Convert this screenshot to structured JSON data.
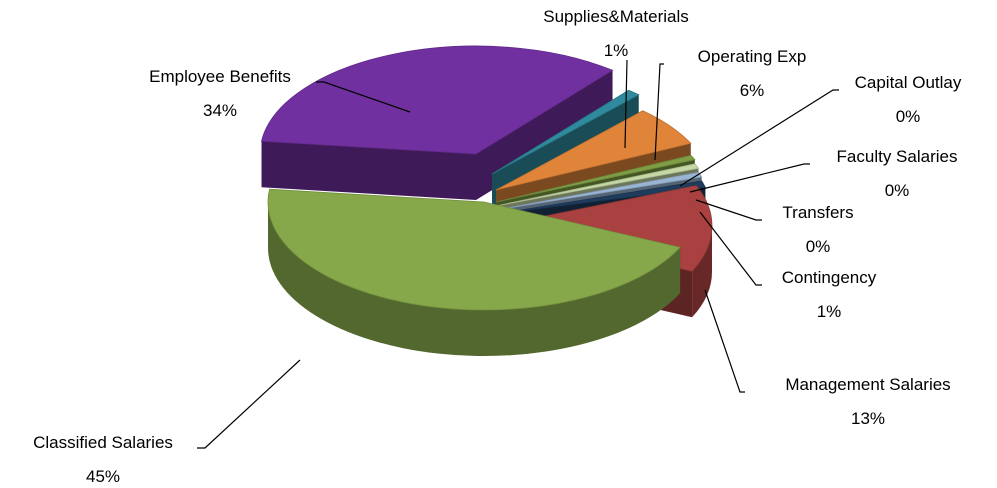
{
  "chart_data": {
    "type": "pie",
    "style": "3d-exploded",
    "title": "",
    "slices": [
      {
        "name": "Management Salaries",
        "value": 13,
        "label": "13%",
        "color": "#a8413f"
      },
      {
        "name": "Classified Salaries",
        "value": 45,
        "label": "45%",
        "color": "#86a84a"
      },
      {
        "name": "Employee Benefits",
        "value": 34,
        "label": "34%",
        "color": "#7130a0"
      },
      {
        "name": "Supplies&Materials",
        "value": 1,
        "label": "1%",
        "color": "#2e8a9c"
      },
      {
        "name": "Operating Exp",
        "value": 6,
        "label": "6%",
        "color": "#e0843a"
      },
      {
        "name": "Capital Outlay",
        "value": 0,
        "label": "0%",
        "color": "#7e9d44"
      },
      {
        "name": "Faculty Salaries",
        "value": 0,
        "label": "0%",
        "color": "#c4d7a4"
      },
      {
        "name": "Transfers",
        "value": 0,
        "label": "0%",
        "color": "#9ab5d4"
      },
      {
        "name": "Contingency",
        "value": 1,
        "label": "1%",
        "color": "#1f3c5c"
      }
    ]
  }
}
